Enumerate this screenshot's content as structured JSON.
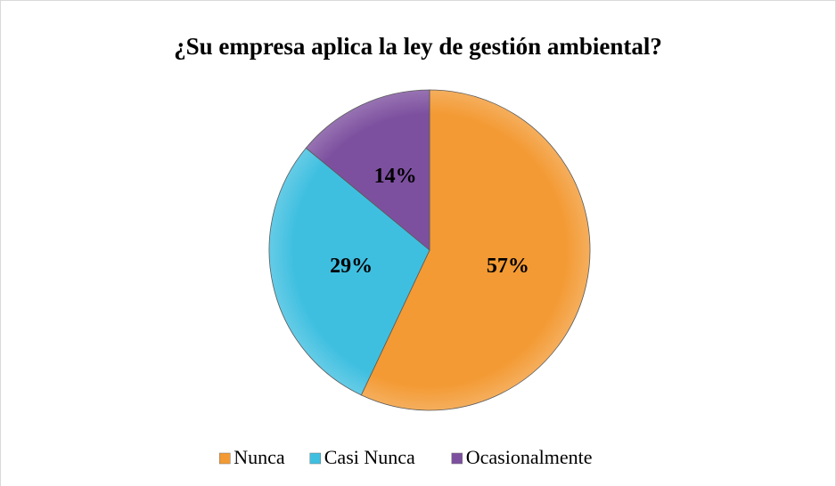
{
  "chart_data": {
    "type": "pie",
    "title": "¿Su empresa aplica la ley de gestión ambiental?",
    "categories": [
      "Nunca",
      "Casi Nunca",
      "Ocasionalmente"
    ],
    "values": [
      57,
      29,
      14
    ],
    "value_labels": [
      "57%",
      "29%",
      "14%"
    ],
    "colors": [
      "#f39a34",
      "#3fbfe0",
      "#7d509f"
    ],
    "legend": "bottom"
  }
}
